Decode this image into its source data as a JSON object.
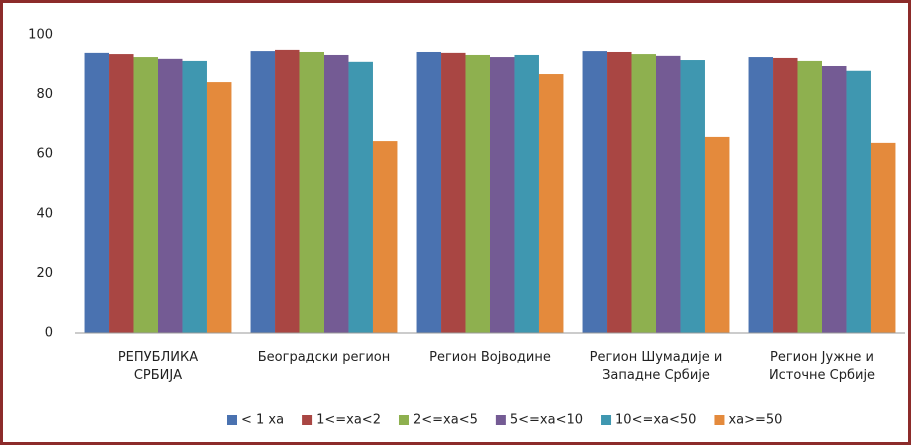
{
  "chart_data": {
    "type": "bar",
    "categories": [
      "РЕПУБЛИКА\nСРБИЈА",
      "Београдски регион",
      "Регион Војводине",
      "Регион Шумадије и\nЗападне Србије",
      "Регион Јужне и\nИсточне Србије"
    ],
    "series": [
      {
        "name": "< 1 ха",
        "color": "#4a72b0",
        "values": [
          94.0,
          94.6,
          94.3,
          94.6,
          92.6
        ]
      },
      {
        "name": "1<=ха<2",
        "color": "#a94643",
        "values": [
          93.6,
          95.0,
          94.0,
          94.3,
          92.3
        ]
      },
      {
        "name": "2<=ха<5",
        "color": "#8eb04f",
        "values": [
          92.6,
          94.3,
          93.3,
          93.6,
          91.3
        ]
      },
      {
        "name": "5<=ха<10",
        "color": "#745b94",
        "values": [
          92.0,
          93.3,
          92.6,
          93.0,
          89.6
        ]
      },
      {
        "name": "10<=ха<50",
        "color": "#3f97b0",
        "values": [
          91.3,
          91.0,
          93.3,
          91.6,
          88.0
        ]
      },
      {
        "name": "ха>=50",
        "color": "#e48a3c",
        "values": [
          84.2,
          64.4,
          86.9,
          65.8,
          63.8
        ]
      }
    ],
    "ylim": [
      0,
      100
    ],
    "yticks": [
      0,
      20,
      40,
      60,
      80,
      100
    ],
    "grid": false,
    "legend": "bottom"
  }
}
